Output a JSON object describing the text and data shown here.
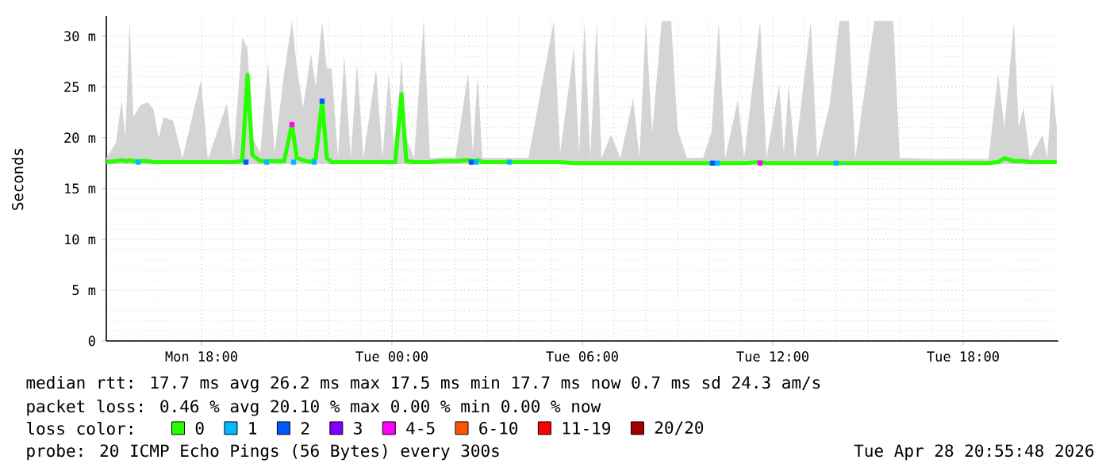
{
  "chart_data": {
    "type": "line",
    "ylabel": "Seconds",
    "legend_title": "loss color:",
    "legend": "bottom",
    "grid": true,
    "xlim": [
      "2026-04-27T15:00",
      "2026-04-28T21:00"
    ],
    "ylim": [
      0,
      32
    ],
    "xticks": [
      {
        "value": "2026-04-27T18:00",
        "label": "Mon 18:00"
      },
      {
        "value": "2026-04-28T00:00",
        "label": "Tue 00:00"
      },
      {
        "value": "2026-04-28T06:00",
        "label": "Tue 06:00"
      },
      {
        "value": "2026-04-28T12:00",
        "label": "Tue 12:00"
      },
      {
        "value": "2026-04-28T18:00",
        "label": "Tue 18:00"
      }
    ],
    "yticks": [
      0,
      {
        "value": 5,
        "label": "5 m"
      },
      {
        "value": 10,
        "label": "10 m"
      },
      {
        "value": 15,
        "label": "15 m"
      },
      {
        "value": 20,
        "label": "20 m"
      },
      {
        "value": 25,
        "label": "25 m"
      },
      {
        "value": 30,
        "label": "30 m"
      }
    ],
    "annotations": [
      "median rtt:  17.7 ms avg  26.2 ms max  17.5 ms min  17.7 ms now  0.7 ms sd  24.3   am/s",
      "packet loss: 0.46 % avg  20.10 % max  0.00 % min  0.00 % now",
      "probe:       20 ICMP Echo Pings (56 Bytes) every 300s",
      "Tue Apr 28 20:55:48 2026"
    ],
    "series": [
      {
        "name": "0",
        "color": "#26ff00",
        "line_style": "solid",
        "x": [
          "2026-04-27T15:00",
          "2026-04-27T15:18",
          "2026-04-27T15:29",
          "2026-04-27T15:36",
          "2026-04-27T15:44",
          "2026-04-27T15:51",
          "2026-04-27T16:04",
          "2026-04-27T16:18",
          "2026-04-27T16:29",
          "2026-04-27T16:39",
          "2026-04-27T16:48",
          "2026-04-27T17:06",
          "2026-04-27T17:24",
          "2026-04-27T17:59",
          "2026-04-27T18:12",
          "2026-04-27T18:48",
          "2026-04-27T19:00",
          "2026-04-27T19:17",
          "2026-04-27T19:27",
          "2026-04-27T19:36",
          "2026-04-27T19:51",
          "2026-04-27T20:06",
          "2026-04-27T20:18",
          "2026-04-27T20:36",
          "2026-04-27T20:51",
          "2026-04-27T21:00",
          "2026-04-27T21:12",
          "2026-04-27T21:27",
          "2026-04-27T21:36",
          "2026-04-27T21:48",
          "2026-04-27T21:57",
          "2026-04-27T22:06",
          "2026-04-27T22:18",
          "2026-04-27T22:30",
          "2026-04-27T22:42",
          "2026-04-27T22:54",
          "2026-04-27T23:06",
          "2026-04-27T23:30",
          "2026-04-27T23:42",
          "2026-04-27T23:54",
          "2026-04-28T00:06",
          "2026-04-28T00:18",
          "2026-04-28T00:27",
          "2026-04-28T00:42",
          "2026-04-28T01:00",
          "2026-04-28T01:12",
          "2026-04-28T01:36",
          "2026-04-28T02:00",
          "2026-04-28T02:24",
          "2026-04-28T02:33",
          "2026-04-28T02:42",
          "2026-04-28T02:51",
          "2026-04-28T03:30",
          "2026-04-28T04:18",
          "2026-04-28T05:06",
          "2026-04-28T05:18",
          "2026-04-28T05:44",
          "2026-04-28T05:54",
          "2026-04-28T06:04",
          "2026-04-28T06:15",
          "2026-04-28T06:27",
          "2026-04-28T06:36",
          "2026-04-28T06:54",
          "2026-04-28T07:12",
          "2026-04-28T07:36",
          "2026-04-28T07:48",
          "2026-04-28T08:00",
          "2026-04-28T08:12",
          "2026-04-28T08:30",
          "2026-04-28T08:48",
          "2026-04-28T09:00",
          "2026-04-28T09:18",
          "2026-04-28T09:48",
          "2026-04-28T10:04",
          "2026-04-28T10:18",
          "2026-04-28T10:30",
          "2026-04-28T10:54",
          "2026-04-28T11:06",
          "2026-04-28T11:36",
          "2026-04-28T11:48",
          "2026-04-28T12:12",
          "2026-04-28T12:21",
          "2026-04-28T12:30",
          "2026-04-28T12:42",
          "2026-04-28T13:12",
          "2026-04-28T13:24",
          "2026-04-28T13:48",
          "2026-04-28T14:06",
          "2026-04-28T14:24",
          "2026-04-28T14:36",
          "2026-04-28T15:12",
          "2026-04-28T15:48",
          "2026-04-28T16:00",
          "2026-04-28T17:00",
          "2026-04-28T18:00",
          "2026-04-28T18:48",
          "2026-04-28T19:06",
          "2026-04-28T19:18",
          "2026-04-28T19:36",
          "2026-04-28T19:45",
          "2026-04-28T19:54",
          "2026-04-28T20:06",
          "2026-04-28T20:30",
          "2026-04-28T20:39",
          "2026-04-28T20:48",
          "2026-04-28T20:57"
        ],
        "values": [
          17.6,
          17.7,
          17.8,
          17.7,
          17.8,
          17.7,
          17.7,
          17.7,
          17.6,
          17.6,
          17.6,
          17.6,
          17.6,
          17.6,
          17.6,
          17.6,
          17.6,
          17.7,
          26.2,
          18.3,
          17.7,
          17.7,
          17.7,
          17.7,
          21.3,
          18.0,
          17.8,
          17.6,
          18.0,
          23.6,
          18.0,
          17.6,
          17.6,
          17.6,
          17.6,
          17.6,
          17.6,
          17.6,
          17.6,
          17.6,
          17.6,
          24.3,
          17.7,
          17.6,
          17.6,
          17.6,
          17.7,
          17.7,
          17.8,
          17.7,
          17.8,
          17.6,
          17.6,
          17.6,
          17.6,
          17.6,
          17.5,
          17.5,
          17.5,
          17.5,
          17.5,
          17.5,
          17.5,
          17.5,
          17.5,
          17.5,
          17.5,
          17.5,
          17.5,
          17.5,
          17.5,
          17.5,
          17.5,
          17.5,
          17.5,
          17.5,
          17.5,
          17.5,
          17.6,
          17.5,
          17.5,
          17.5,
          17.5,
          17.5,
          17.5,
          17.5,
          17.5,
          17.5,
          17.5,
          17.5,
          17.5,
          17.5,
          17.5,
          17.5,
          17.5,
          17.5,
          17.6,
          18.0,
          17.7,
          17.7,
          17.7,
          17.6,
          17.6,
          17.6,
          17.6,
          17.6
        ],
        "lower": [
          17.4,
          17.4,
          17.4,
          17.4,
          17.4,
          17.4,
          17.4,
          17.4,
          17.4,
          17.4,
          17.4,
          17.4,
          17.4,
          17.4,
          17.4,
          17.4,
          17.4,
          17.4,
          17.4,
          17.4,
          17.4,
          17.4,
          17.4,
          17.4,
          17.4,
          17.4,
          17.4,
          17.4,
          17.4,
          17.4,
          17.4,
          17.4,
          17.4,
          17.4,
          17.4,
          17.4,
          17.4,
          17.4,
          17.4,
          17.4,
          17.4,
          17.4,
          17.4,
          17.4,
          17.4,
          17.4,
          17.4,
          17.4,
          17.4,
          17.4,
          17.4,
          17.4,
          17.4,
          17.4,
          17.4,
          17.4,
          17.4,
          17.4,
          17.4,
          17.4,
          17.4,
          17.4,
          17.4,
          17.4,
          17.4,
          17.4,
          17.4,
          17.4,
          17.4,
          17.4,
          17.4,
          17.4,
          17.4,
          17.4,
          17.4,
          17.4,
          17.4,
          17.4,
          17.4,
          17.4,
          17.4,
          17.4,
          17.4,
          17.4,
          17.4,
          17.4,
          17.4,
          17.4,
          17.4,
          17.4,
          17.4,
          17.4,
          17.4,
          17.4,
          17.4,
          17.4,
          17.4,
          17.4,
          17.4,
          17.4,
          17.4,
          17.4,
          17.4,
          17.4,
          17.4,
          17.4
        ],
        "upper": [
          18.0,
          19.5,
          23.7,
          20.0,
          31.5,
          22.0,
          23.2,
          23.5,
          22.8,
          20.0,
          22.0,
          21.7,
          18.0,
          25.7,
          17.9,
          23.4,
          17.9,
          29.9,
          28.8,
          20.0,
          18.5,
          27.5,
          18.5,
          26.3,
          31.5,
          27.0,
          23.0,
          28.3,
          25.0,
          31.5,
          26.8,
          26.8,
          18.0,
          28.1,
          18.0,
          27.3,
          18.0,
          26.8,
          18.0,
          26.4,
          18.0,
          27.8,
          20.0,
          18.0,
          31.5,
          18.0,
          18.0,
          18.0,
          26.4,
          18.5,
          26.2,
          18.0,
          18.0,
          18.0,
          31.5,
          18.5,
          28.9,
          18.5,
          31.5,
          18.0,
          31.5,
          18.0,
          20.3,
          18.0,
          23.9,
          18.0,
          31.5,
          20.5,
          31.5,
          31.5,
          20.8,
          18.0,
          18.0,
          20.5,
          31.5,
          18.0,
          23.7,
          18.0,
          31.5,
          18.0,
          25.3,
          18.5,
          25.2,
          18.0,
          31.5,
          18.0,
          23.4,
          31.5,
          31.5,
          18.0,
          31.5,
          31.5,
          18.0,
          17.9,
          17.9,
          17.9,
          26.3,
          21.0,
          31.5,
          21.0,
          23.0,
          18.0,
          20.3,
          18.0,
          25.5,
          21.0
        ]
      },
      {
        "name": "1",
        "type": "scatter",
        "color": "#00b8ff",
        "marker": "square",
        "x": [
          "2026-04-27T16:00",
          "2026-04-27T20:03",
          "2026-04-27T20:54",
          "2026-04-27T21:33",
          "2026-04-28T02:39",
          "2026-04-28T03:42",
          "2026-04-28T10:15",
          "2026-04-28T14:00"
        ],
        "values": [
          17.6,
          17.6,
          17.6,
          17.6,
          17.6,
          17.6,
          17.5,
          17.5
        ]
      },
      {
        "name": "2",
        "type": "scatter",
        "color": "#0059ff",
        "marker": "square",
        "x": [
          "2026-04-27T19:24",
          "2026-04-27T21:48",
          "2026-04-28T02:30",
          "2026-04-28T10:06"
        ],
        "values": [
          17.6,
          23.6,
          17.6,
          17.5
        ]
      },
      {
        "name": "3",
        "type": "scatter",
        "color": "#7e00ff",
        "marker": "square"
      },
      {
        "name": "4-5",
        "type": "scatter",
        "color": "#ff00fe",
        "marker": "square",
        "x": [
          "2026-04-27T20:51",
          "2026-04-28T11:36"
        ],
        "values": [
          21.3,
          17.5
        ]
      },
      {
        "name": "6-10",
        "type": "scatter",
        "color": "#ff5500",
        "marker": "square"
      },
      {
        "name": "11-19",
        "type": "scatter",
        "color": "#ff0000",
        "marker": "square"
      },
      {
        "name": "20/20",
        "type": "scatter",
        "color": "#a10000",
        "marker": "square"
      }
    ]
  }
}
